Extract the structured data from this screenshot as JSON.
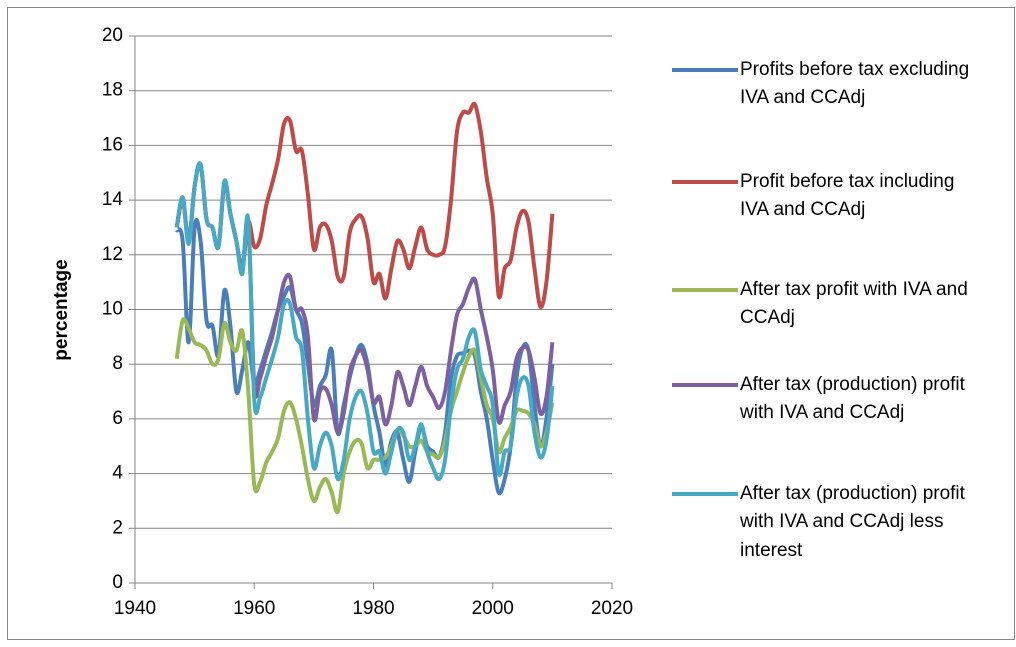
{
  "chart_data": {
    "type": "line",
    "y_label": "percentage",
    "x": [
      1947,
      1948,
      1949,
      1950,
      1951,
      1952,
      1953,
      1954,
      1955,
      1956,
      1957,
      1958,
      1959,
      1960,
      1961,
      1962,
      1963,
      1964,
      1965,
      1966,
      1967,
      1968,
      1969,
      1970,
      1971,
      1972,
      1973,
      1974,
      1975,
      1976,
      1977,
      1978,
      1979,
      1980,
      1981,
      1982,
      1983,
      1984,
      1985,
      1986,
      1987,
      1988,
      1989,
      1990,
      1991,
      1992,
      1993,
      1994,
      1995,
      1996,
      1997,
      1998,
      1999,
      2000,
      2001,
      2002,
      2003,
      2004,
      2005,
      2006,
      2007,
      2008,
      2009,
      2010
    ],
    "series": [
      {
        "name": "Profits before tax excluding IVA and CCAdj",
        "color": "#4a7ebb",
        "values": [
          12.9,
          12.5,
          8.8,
          13.0,
          12.5,
          9.6,
          9.4,
          8.3,
          10.7,
          9.4,
          7.0,
          7.8,
          8.8,
          7.3,
          7.8,
          8.5,
          9.2,
          10.0,
          10.5,
          10.8,
          10.0,
          9.5,
          8.0,
          6.5,
          7.2,
          7.6,
          8.5,
          5.5,
          6.5,
          7.5,
          8.3,
          8.7,
          8.0,
          6.5,
          5.5,
          4.3,
          5.2,
          5.5,
          4.5,
          3.7,
          4.8,
          5.7,
          5.0,
          4.8,
          4.6,
          5.5,
          7.5,
          8.3,
          8.4,
          8.5,
          8.3,
          7.0,
          6.0,
          4.5,
          3.3,
          3.8,
          5.0,
          7.5,
          8.6,
          8.5,
          6.5,
          5.0,
          6.0,
          8.0
        ]
      },
      {
        "name": "Profit before tax including IVA and CCAdj",
        "color": "#be4b48",
        "values": [
          13.0,
          14.0,
          12.5,
          14.5,
          15.3,
          13.3,
          13.0,
          12.3,
          14.6,
          13.5,
          12.5,
          11.5,
          13.2,
          12.3,
          12.6,
          13.8,
          14.6,
          15.5,
          16.8,
          16.9,
          15.8,
          15.8,
          14.2,
          12.2,
          13.0,
          13.1,
          12.5,
          11.2,
          11.2,
          12.8,
          13.3,
          13.4,
          12.6,
          11.0,
          11.3,
          10.4,
          11.5,
          12.5,
          12.2,
          11.5,
          12.3,
          13.0,
          12.2,
          12.0,
          12.0,
          12.3,
          14.0,
          16.5,
          17.2,
          17.2,
          17.5,
          16.5,
          14.8,
          13.5,
          10.5,
          11.5,
          11.8,
          13.0,
          13.6,
          13.2,
          11.5,
          10.1,
          11.0,
          13.5
        ]
      },
      {
        "name": "After tax profit with IVA and CCAdj",
        "color": "#98b954",
        "values": [
          8.2,
          9.6,
          9.3,
          8.8,
          8.7,
          8.5,
          8.0,
          8.2,
          9.5,
          8.8,
          8.5,
          9.2,
          7.0,
          3.6,
          3.7,
          4.4,
          4.8,
          5.3,
          6.3,
          6.6,
          6.0,
          5.0,
          3.8,
          3.0,
          3.5,
          3.8,
          3.3,
          2.6,
          4.0,
          4.8,
          5.2,
          5.1,
          4.2,
          4.5,
          4.5,
          4.6,
          5.0,
          5.6,
          5.4,
          5.0,
          5.0,
          5.2,
          4.8,
          4.7,
          4.6,
          5.2,
          6.3,
          7.0,
          7.7,
          8.3,
          8.5,
          7.5,
          6.5,
          6.0,
          4.8,
          5.3,
          5.7,
          6.3,
          6.3,
          6.2,
          5.8,
          5.0,
          5.5,
          6.6
        ]
      },
      {
        "name": "After tax (production) profit with IVA and CCAdj",
        "color": "#7d60a0",
        "values": [
          13.0,
          14.1,
          12.5,
          14.5,
          15.3,
          13.3,
          13.0,
          12.3,
          14.6,
          13.5,
          12.5,
          11.5,
          13.2,
          7.2,
          7.5,
          8.3,
          9.0,
          10.0,
          11.0,
          11.2,
          10.0,
          10.0,
          9.0,
          6.0,
          7.0,
          7.1,
          6.5,
          5.5,
          6.2,
          7.7,
          8.3,
          8.5,
          7.8,
          6.6,
          6.8,
          5.8,
          6.5,
          7.7,
          7.2,
          6.5,
          7.2,
          7.9,
          7.2,
          6.8,
          6.4,
          7.0,
          8.5,
          9.8,
          10.2,
          10.8,
          11.1,
          10.0,
          9.0,
          7.8,
          5.9,
          6.5,
          7.0,
          8.2,
          8.6,
          8.5,
          7.5,
          6.2,
          6.8,
          8.8
        ]
      },
      {
        "name": "After tax (production) profit with IVA and CCAdj less interest",
        "color": "#46aac5",
        "values": [
          13.0,
          14.1,
          12.4,
          14.5,
          15.3,
          13.3,
          13.0,
          12.3,
          14.7,
          13.5,
          12.5,
          11.3,
          13.3,
          6.7,
          6.8,
          7.5,
          8.2,
          9.0,
          10.2,
          10.2,
          9.0,
          8.5,
          6.0,
          4.2,
          5.0,
          5.5,
          5.0,
          3.8,
          4.5,
          6.0,
          6.8,
          7.0,
          6.2,
          4.8,
          4.8,
          4.0,
          4.8,
          5.6,
          5.5,
          4.5,
          5.0,
          5.8,
          4.8,
          4.2,
          3.8,
          4.5,
          6.5,
          7.8,
          8.2,
          9.0,
          9.2,
          7.8,
          7.2,
          6.5,
          4.0,
          4.8,
          5.0,
          6.8,
          7.5,
          7.2,
          5.5,
          4.6,
          5.2,
          7.2
        ]
      }
    ],
    "xlim": [
      1940,
      2020
    ],
    "xticks": [
      1940,
      1960,
      1980,
      2000,
      2020
    ],
    "ylim": [
      0,
      20
    ],
    "yticks": [
      0,
      2,
      4,
      6,
      8,
      10,
      12,
      14,
      16,
      18,
      20
    ],
    "grid": true,
    "legend": "right"
  }
}
